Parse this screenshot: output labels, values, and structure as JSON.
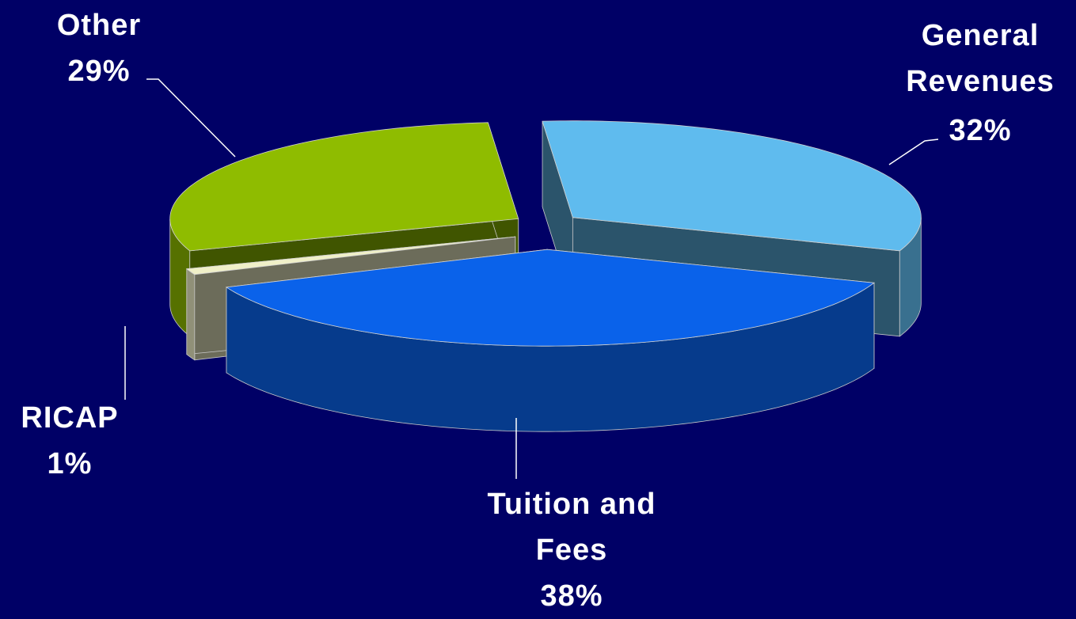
{
  "chart_data": {
    "type": "pie",
    "categories": [
      "General Revenues",
      "Tuition and Fees",
      "RICAP",
      "Other"
    ],
    "values": [
      32,
      38,
      1,
      29
    ],
    "value_labels": [
      "32%",
      "38%",
      "1%",
      "29%"
    ],
    "colors": [
      "#5fbbee",
      "#0a62ea",
      "#f0f0c8",
      "#8fbc00"
    ]
  }
}
